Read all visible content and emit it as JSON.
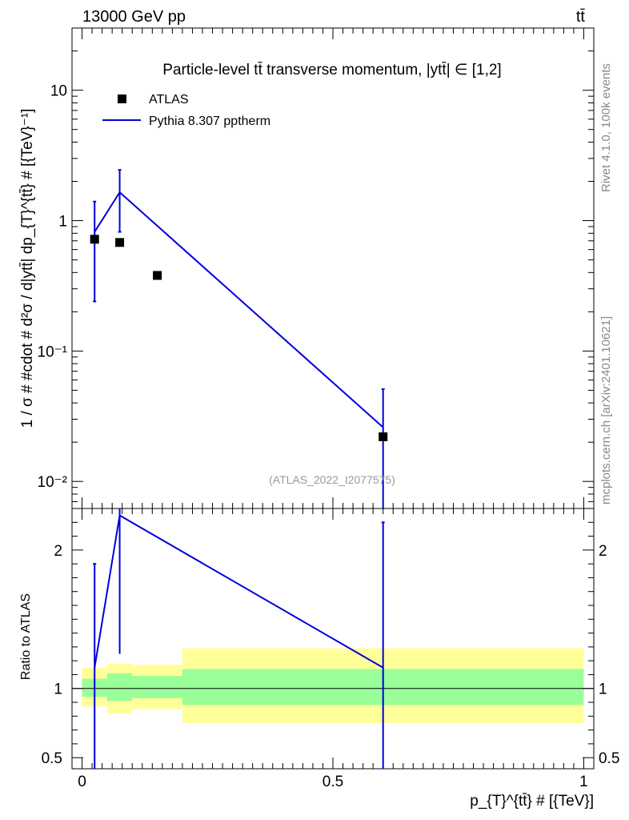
{
  "header": {
    "left_label": "13000 GeV pp",
    "right_label": "tt̄"
  },
  "side_labels": {
    "rivet": "Rivet 4.1.0,  100k events",
    "mcplots": "mcplots.cern.ch [arXiv:2401.10621]"
  },
  "watermark": "(ATLAS_2022_I2077575)",
  "colors": {
    "mc_line": "#0000dd",
    "data_marker": "#000000",
    "band_inner": "#99ff99",
    "band_outer": "#ffff99"
  },
  "chart_data": [
    {
      "name": "main",
      "type": "scatter",
      "title": "Particle-level tt̄ transverse momentum, |ytt̄| ∈ [1,2]",
      "ylabel": "1 / σ # #cdot # d²σ / d|ytt̄| dp_{T}^{tt̄} # [{TeV}⁻¹]",
      "yscale": "log",
      "xlim": [
        -0.02,
        1.02
      ],
      "ylim": [
        0.0062,
        30
      ],
      "y_ticks": [
        {
          "value": 10,
          "label": "10"
        },
        {
          "value": 1,
          "label": "1"
        },
        {
          "value": 0.1,
          "label": "10⁻¹"
        },
        {
          "value": 0.01,
          "label": "10⁻²"
        }
      ],
      "legend": {
        "position": "top-left",
        "entries": [
          {
            "label": "ATLAS",
            "kind": "marker"
          },
          {
            "label": "Pythia 8.307 pptherm",
            "kind": "line"
          }
        ]
      },
      "series": [
        {
          "name": "ATLAS",
          "kind": "points",
          "x": [
            0.025,
            0.075,
            0.15,
            0.6
          ],
          "y": [
            0.72,
            0.68,
            0.38,
            0.022
          ]
        },
        {
          "name": "Pythia 8.307 pptherm",
          "kind": "line",
          "x": [
            0.025,
            0.075,
            0.6
          ],
          "y": [
            0.82,
            1.65,
            0.026
          ],
          "err_low": [
            0.24,
            0.82,
            0.0062
          ],
          "err_high": [
            1.4,
            2.45,
            0.051
          ]
        }
      ]
    },
    {
      "name": "ratio",
      "type": "line",
      "ylabel": "Ratio to ATLAS",
      "xlabel": "p_{T}^{tt̄} # [{TeV}]",
      "xlim": [
        -0.02,
        1.02
      ],
      "ylim": [
        0.42,
        2.3
      ],
      "x_ticks": [
        {
          "value": 0,
          "label": "0"
        },
        {
          "value": 0.5,
          "label": "0.5"
        },
        {
          "value": 1,
          "label": "1"
        }
      ],
      "y_ticks": [
        {
          "value": 2,
          "label": "2"
        },
        {
          "value": 1,
          "label": "1"
        },
        {
          "value": 0.5,
          "label": "0.5"
        }
      ],
      "reference_line": 1,
      "bands": [
        {
          "x_low": 0.0,
          "x_high": 0.05,
          "inner": [
            0.94,
            1.07
          ],
          "outer": [
            0.87,
            1.15
          ]
        },
        {
          "x_low": 0.05,
          "x_high": 0.1,
          "inner": [
            0.91,
            1.11
          ],
          "outer": [
            0.82,
            1.18
          ]
        },
        {
          "x_low": 0.1,
          "x_high": 0.2,
          "inner": [
            0.93,
            1.09
          ],
          "outer": [
            0.85,
            1.17
          ]
        },
        {
          "x_low": 0.2,
          "x_high": 1.0,
          "inner": [
            0.88,
            1.14
          ],
          "outer": [
            0.75,
            1.29
          ]
        }
      ],
      "series": [
        {
          "name": "Pythia 8.307 pptherm",
          "x": [
            0.025,
            0.075,
            0.6
          ],
          "y": [
            1.15,
            2.25,
            1.15
          ],
          "err_low": [
            0.42,
            1.25,
            0.42
          ],
          "err_high": [
            1.9,
            2.3,
            2.2
          ]
        }
      ]
    }
  ]
}
